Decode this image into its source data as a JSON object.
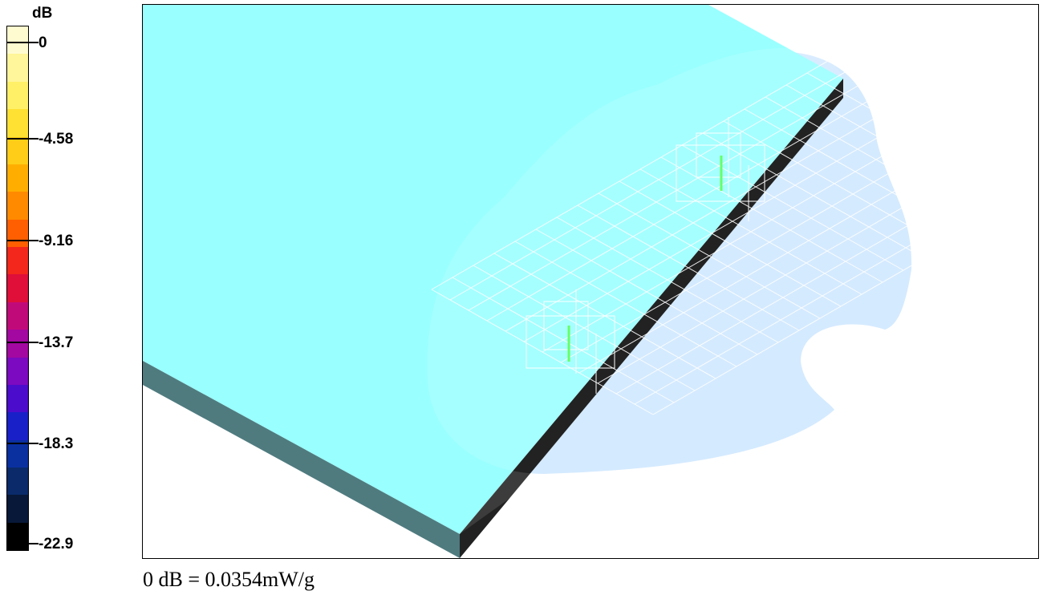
{
  "legend": {
    "unit": "dB",
    "ticks": [
      "0",
      "-4.58",
      "-9.16",
      "-13.7",
      "-18.3",
      "-22.9"
    ],
    "colors": [
      "#fffbd0",
      "#fff59a",
      "#fff067",
      "#ffe134",
      "#ffcc17",
      "#ffae00",
      "#ff8a00",
      "#ff5f00",
      "#f3271b",
      "#df0f3a",
      "#c10a7a",
      "#a308a0",
      "#7c0ac0",
      "#4c0ccc",
      "#1a20c8",
      "#0a30a0",
      "#0a2a6a",
      "#081838",
      "#000000"
    ]
  },
  "scene": {
    "phantom_fill": "#99ffff",
    "phantom_side": "#4f7b7f",
    "phantom_edge": "#222222",
    "field_color": "#cde6ff",
    "grid_color": "#ffffff",
    "antenna_color": "#66ff66"
  },
  "caption": "0 dB = 0.0354mW/g"
}
